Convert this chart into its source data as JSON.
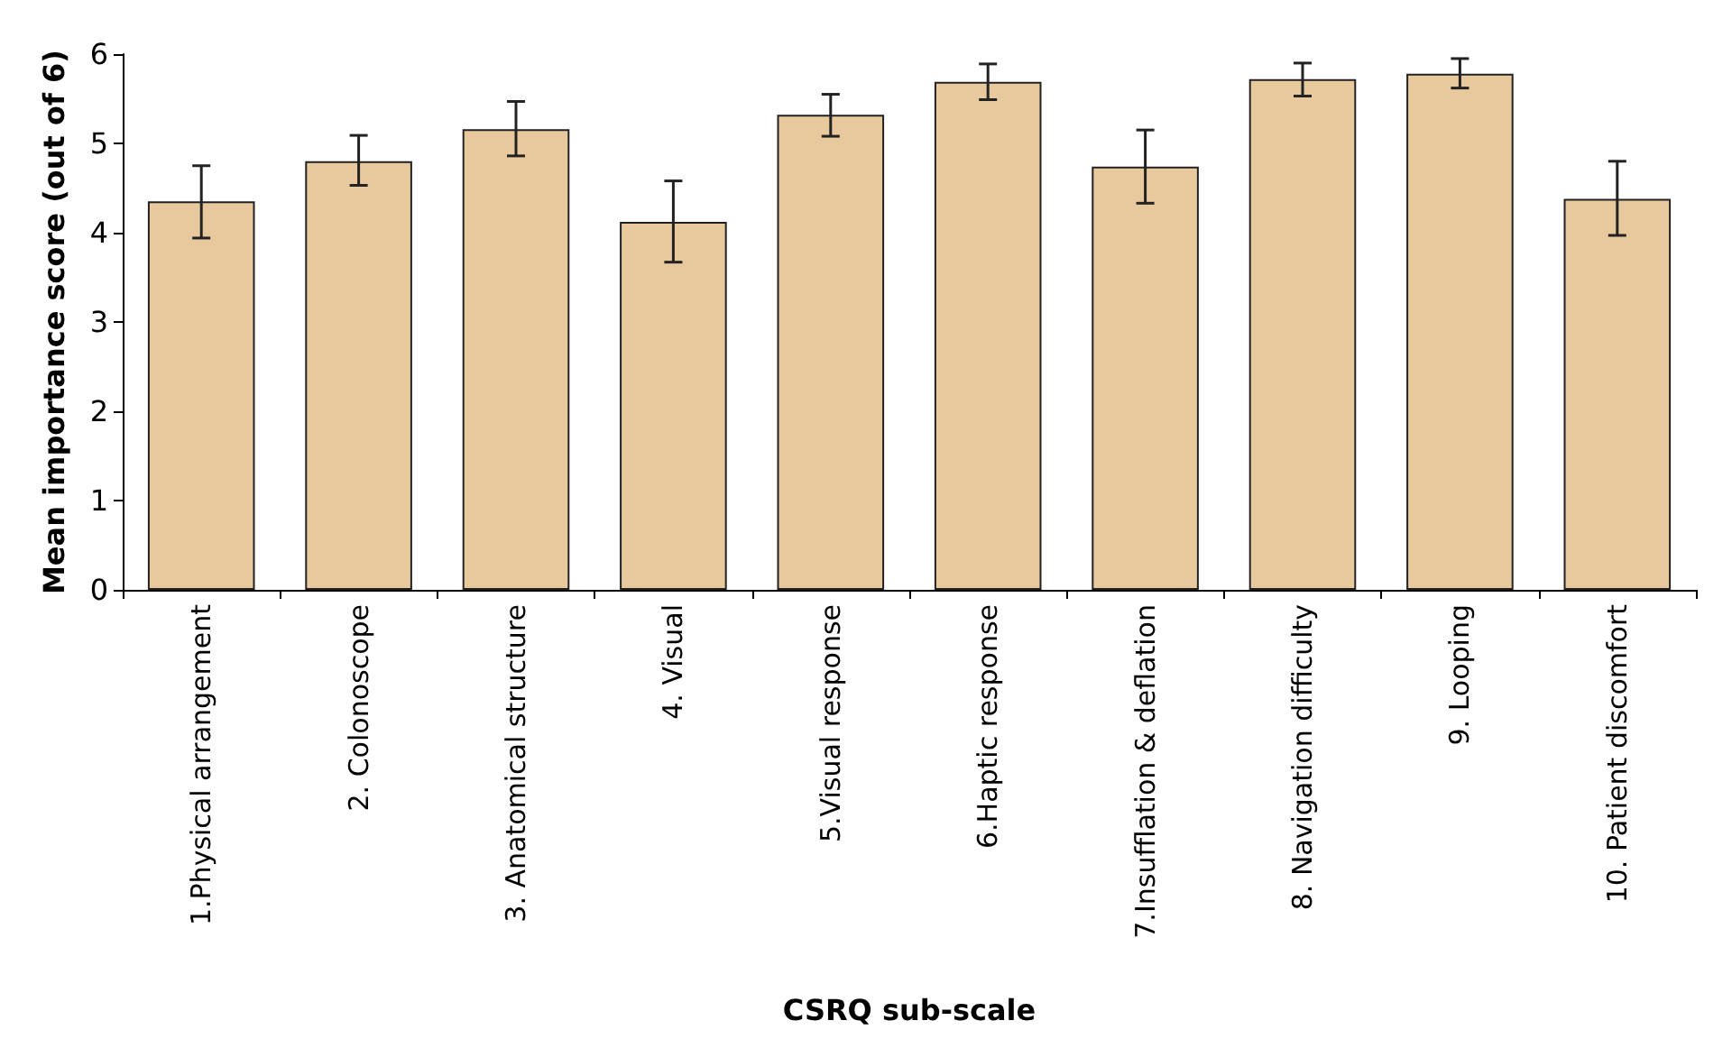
{
  "chart_data": {
    "type": "bar",
    "xlabel": "CSRQ sub-scale",
    "ylabel": "Mean importance score (out of 6)",
    "categories": [
      "1.Physical arrangement",
      "2. Colonoscope",
      "3. Anatomical structure",
      "4. Visual",
      "5.Visual response",
      "6.Haptic response",
      "7.Insufflation & deflation",
      "8. Navigation difficulty",
      "9. Looping",
      "10. Patient discomfort"
    ],
    "values": [
      4.35,
      4.8,
      5.16,
      4.12,
      5.32,
      5.69,
      4.74,
      5.72,
      5.78,
      4.38
    ],
    "errors": [
      [
        3.94,
        4.75
      ],
      [
        4.53,
        5.09
      ],
      [
        4.86,
        5.47
      ],
      [
        3.67,
        4.58
      ],
      [
        5.08,
        5.55
      ],
      [
        5.49,
        5.89
      ],
      [
        4.33,
        5.15
      ],
      [
        5.53,
        5.9
      ],
      [
        5.62,
        5.95
      ],
      [
        3.97,
        4.8
      ]
    ],
    "color": "#e8c99e",
    "ylim": [
      0,
      6
    ],
    "yticks": [
      0,
      1,
      2,
      3,
      4,
      5,
      6
    ],
    "grid": false
  }
}
